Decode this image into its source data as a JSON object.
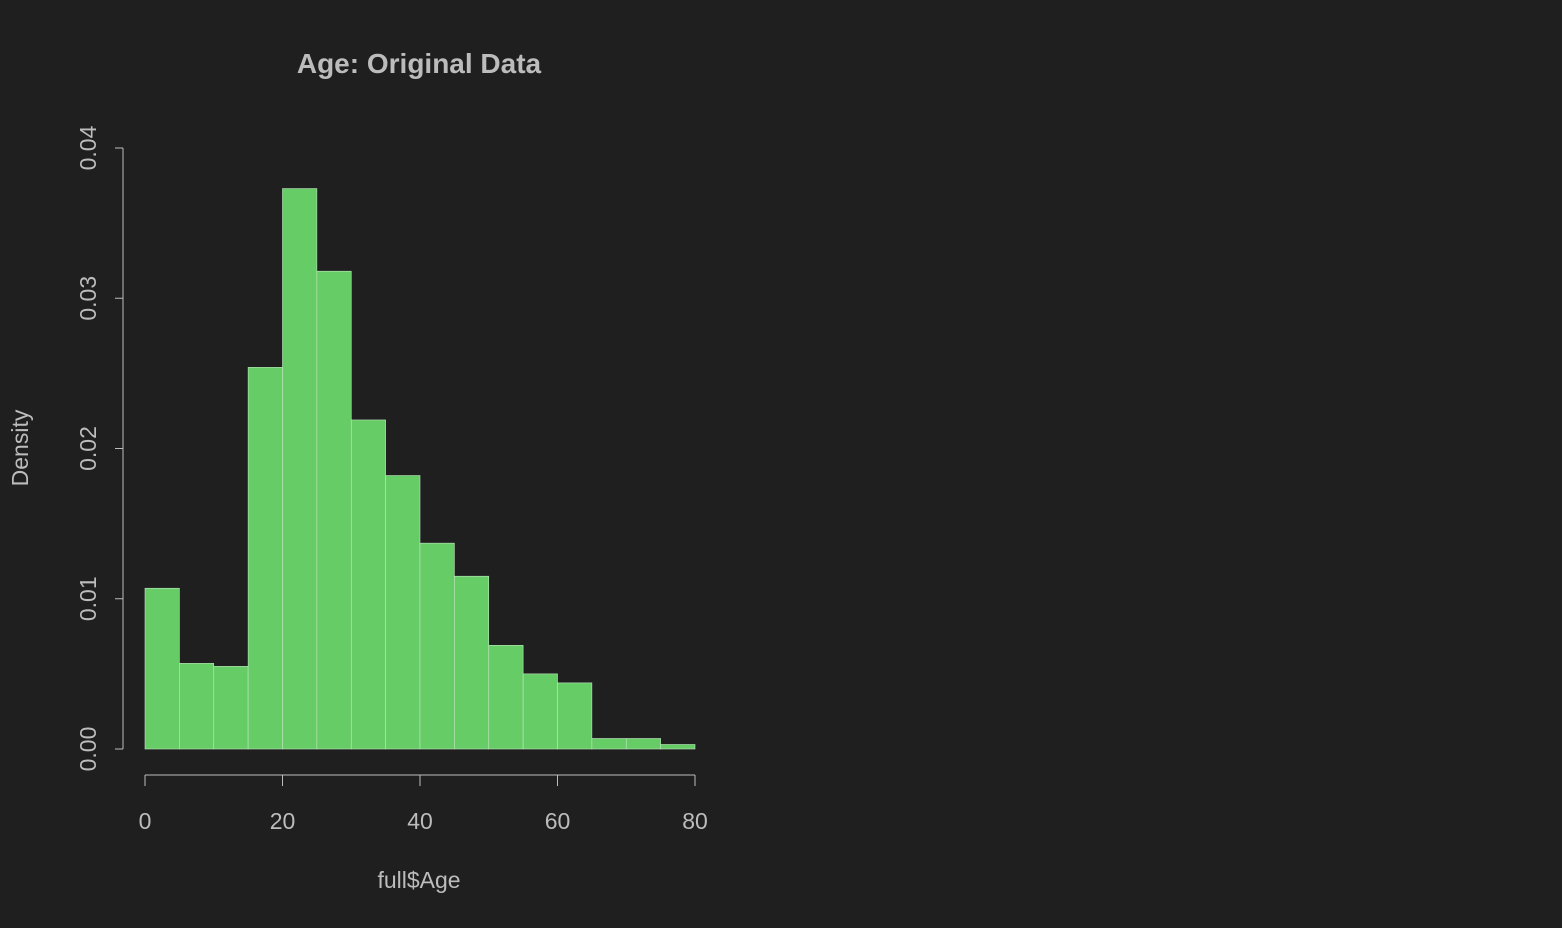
{
  "colors": {
    "background": "#1f1f1f",
    "bar_fill": "#66cc66",
    "text": "#bcbcbc"
  },
  "chart_data": {
    "type": "bar",
    "title": "Age: Original Data",
    "xlabel": "full$Age",
    "ylabel": "Density",
    "xlim": [
      0,
      80
    ],
    "ylim": [
      0,
      0.04
    ],
    "x_ticks": [
      0,
      20,
      40,
      60,
      80
    ],
    "y_ticks": [
      0.0,
      0.01,
      0.02,
      0.03,
      0.04
    ],
    "x_tick_labels": [
      "0",
      "20",
      "40",
      "60",
      "80"
    ],
    "y_tick_labels": [
      "0.00",
      "0.01",
      "0.02",
      "0.03",
      "0.04"
    ],
    "bin_edges": [
      0,
      5,
      10,
      15,
      20,
      25,
      30,
      35,
      40,
      45,
      50,
      55,
      60,
      65,
      70,
      75,
      80
    ],
    "values": [
      0.0107,
      0.0057,
      0.0055,
      0.0254,
      0.0373,
      0.0318,
      0.0219,
      0.0182,
      0.0137,
      0.0115,
      0.0069,
      0.005,
      0.0044,
      0.0007,
      0.0007,
      0.0003
    ],
    "grid": false
  }
}
